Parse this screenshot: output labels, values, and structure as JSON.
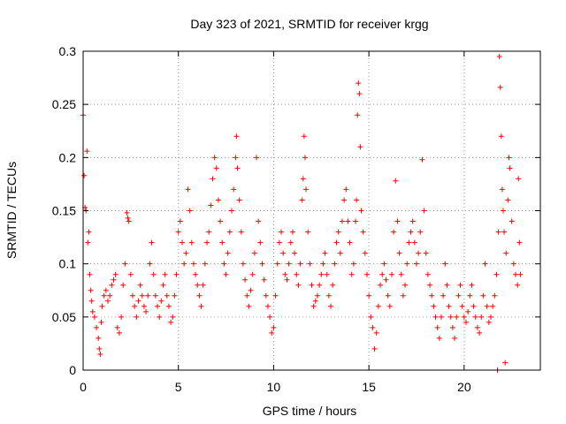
{
  "chart_data": {
    "type": "scatter",
    "title": "Day 323 of 2021, SRMTID for receiver krgg",
    "xlabel": "GPS time / hours",
    "ylabel": "SRMTID / TECUs",
    "xlim": [
      0,
      24
    ],
    "ylim": [
      0,
      0.3
    ],
    "xticks": [
      0,
      5,
      10,
      15,
      20
    ],
    "xtick_labels": [
      "0",
      "5",
      "10",
      "15",
      "20"
    ],
    "yticks": [
      0,
      0.05,
      0.1,
      0.15,
      0.2,
      0.25,
      0.3
    ],
    "ytick_labels": [
      "0",
      "0.05",
      "0.1",
      "0.15",
      "0.2",
      "0.25",
      "0.3"
    ],
    "grid": true,
    "marker": "plus",
    "color": "#ff0000",
    "series": [
      {
        "name": "SRMTID",
        "points": [
          [
            0.0,
            0.24
          ],
          [
            0.05,
            0.183
          ],
          [
            0.1,
            0.153
          ],
          [
            0.15,
            0.15
          ],
          [
            0.2,
            0.206
          ],
          [
            0.25,
            0.12
          ],
          [
            0.3,
            0.13
          ],
          [
            0.35,
            0.09
          ],
          [
            0.4,
            0.075
          ],
          [
            0.45,
            0.065
          ],
          [
            0.5,
            0.055
          ],
          [
            0.6,
            0.05
          ],
          [
            0.7,
            0.04
          ],
          [
            0.8,
            0.03
          ],
          [
            0.85,
            0.02
          ],
          [
            0.9,
            0.015
          ],
          [
            0.95,
            0.045
          ],
          [
            1.0,
            0.06
          ],
          [
            1.1,
            0.07
          ],
          [
            1.2,
            0.075
          ],
          [
            1.3,
            0.065
          ],
          [
            1.4,
            0.07
          ],
          [
            1.5,
            0.08
          ],
          [
            1.6,
            0.085
          ],
          [
            1.7,
            0.09
          ],
          [
            1.8,
            0.04
          ],
          [
            1.9,
            0.035
          ],
          [
            2.0,
            0.05
          ],
          [
            2.1,
            0.08
          ],
          [
            2.2,
            0.1
          ],
          [
            2.3,
            0.148
          ],
          [
            2.35,
            0.143
          ],
          [
            2.4,
            0.14
          ],
          [
            2.5,
            0.09
          ],
          [
            2.6,
            0.07
          ],
          [
            2.7,
            0.06
          ],
          [
            2.8,
            0.05
          ],
          [
            2.9,
            0.065
          ],
          [
            3.0,
            0.08
          ],
          [
            3.1,
            0.07
          ],
          [
            3.2,
            0.06
          ],
          [
            3.3,
            0.055
          ],
          [
            3.4,
            0.07
          ],
          [
            3.5,
            0.1
          ],
          [
            3.6,
            0.12
          ],
          [
            3.7,
            0.09
          ],
          [
            3.8,
            0.07
          ],
          [
            3.9,
            0.06
          ],
          [
            4.0,
            0.05
          ],
          [
            4.1,
            0.065
          ],
          [
            4.2,
            0.08
          ],
          [
            4.3,
            0.09
          ],
          [
            4.4,
            0.07
          ],
          [
            4.5,
            0.06
          ],
          [
            4.6,
            0.045
          ],
          [
            4.7,
            0.05
          ],
          [
            4.8,
            0.07
          ],
          [
            4.9,
            0.09
          ],
          [
            5.0,
            0.13
          ],
          [
            5.1,
            0.14
          ],
          [
            5.2,
            0.12
          ],
          [
            5.3,
            0.1
          ],
          [
            5.4,
            0.11
          ],
          [
            5.5,
            0.17
          ],
          [
            5.6,
            0.15
          ],
          [
            5.7,
            0.12
          ],
          [
            5.8,
            0.1
          ],
          [
            5.9,
            0.09
          ],
          [
            6.0,
            0.08
          ],
          [
            6.1,
            0.07
          ],
          [
            6.2,
            0.06
          ],
          [
            6.3,
            0.08
          ],
          [
            6.4,
            0.1
          ],
          [
            6.5,
            0.12
          ],
          [
            6.6,
            0.13
          ],
          [
            6.7,
            0.155
          ],
          [
            6.8,
            0.18
          ],
          [
            6.9,
            0.2
          ],
          [
            7.0,
            0.19
          ],
          [
            7.1,
            0.16
          ],
          [
            7.2,
            0.14
          ],
          [
            7.3,
            0.12
          ],
          [
            7.4,
            0.1
          ],
          [
            7.5,
            0.09
          ],
          [
            7.6,
            0.11
          ],
          [
            7.7,
            0.13
          ],
          [
            7.8,
            0.15
          ],
          [
            7.9,
            0.17
          ],
          [
            8.0,
            0.2
          ],
          [
            8.05,
            0.22
          ],
          [
            8.1,
            0.19
          ],
          [
            8.2,
            0.16
          ],
          [
            8.3,
            0.13
          ],
          [
            8.4,
            0.1
          ],
          [
            8.5,
            0.085
          ],
          [
            8.6,
            0.07
          ],
          [
            8.7,
            0.06
          ],
          [
            8.8,
            0.075
          ],
          [
            8.9,
            0.09
          ],
          [
            9.0,
            0.11
          ],
          [
            9.1,
            0.2
          ],
          [
            9.2,
            0.14
          ],
          [
            9.3,
            0.12
          ],
          [
            9.4,
            0.1
          ],
          [
            9.5,
            0.085
          ],
          [
            9.6,
            0.07
          ],
          [
            9.7,
            0.06
          ],
          [
            9.8,
            0.05
          ],
          [
            9.9,
            0.035
          ],
          [
            10.0,
            0.04
          ],
          [
            10.1,
            0.07
          ],
          [
            10.2,
            0.1
          ],
          [
            10.3,
            0.12
          ],
          [
            10.4,
            0.13
          ],
          [
            10.5,
            0.11
          ],
          [
            10.6,
            0.09
          ],
          [
            10.7,
            0.085
          ],
          [
            10.8,
            0.1
          ],
          [
            10.9,
            0.12
          ],
          [
            11.0,
            0.13
          ],
          [
            11.1,
            0.11
          ],
          [
            11.2,
            0.09
          ],
          [
            11.3,
            0.08
          ],
          [
            11.4,
            0.1
          ],
          [
            11.5,
            0.16
          ],
          [
            11.55,
            0.18
          ],
          [
            11.6,
            0.22
          ],
          [
            11.65,
            0.2
          ],
          [
            11.7,
            0.17
          ],
          [
            11.8,
            0.13
          ],
          [
            11.9,
            0.1
          ],
          [
            12.0,
            0.08
          ],
          [
            12.1,
            0.06
          ],
          [
            12.2,
            0.065
          ],
          [
            12.3,
            0.07
          ],
          [
            12.4,
            0.08
          ],
          [
            12.5,
            0.09
          ],
          [
            12.6,
            0.1
          ],
          [
            12.7,
            0.11
          ],
          [
            12.8,
            0.09
          ],
          [
            12.9,
            0.07
          ],
          [
            13.0,
            0.06
          ],
          [
            13.1,
            0.08
          ],
          [
            13.2,
            0.1
          ],
          [
            13.3,
            0.12
          ],
          [
            13.4,
            0.13
          ],
          [
            13.5,
            0.11
          ],
          [
            13.6,
            0.14
          ],
          [
            13.7,
            0.16
          ],
          [
            13.8,
            0.17
          ],
          [
            13.9,
            0.14
          ],
          [
            14.0,
            0.12
          ],
          [
            14.1,
            0.09
          ],
          [
            14.2,
            0.1
          ],
          [
            14.3,
            0.14
          ],
          [
            14.35,
            0.16
          ],
          [
            14.4,
            0.24
          ],
          [
            14.45,
            0.27
          ],
          [
            14.5,
            0.26
          ],
          [
            14.55,
            0.21
          ],
          [
            14.6,
            0.15
          ],
          [
            14.7,
            0.13
          ],
          [
            14.8,
            0.11
          ],
          [
            14.9,
            0.09
          ],
          [
            15.0,
            0.07
          ],
          [
            15.1,
            0.05
          ],
          [
            15.2,
            0.04
          ],
          [
            15.3,
            0.02
          ],
          [
            15.4,
            0.035
          ],
          [
            15.5,
            0.06
          ],
          [
            15.6,
            0.08
          ],
          [
            15.7,
            0.09
          ],
          [
            15.8,
            0.1
          ],
          [
            15.9,
            0.085
          ],
          [
            16.0,
            0.07
          ],
          [
            16.1,
            0.06
          ],
          [
            16.2,
            0.09
          ],
          [
            16.3,
            0.13
          ],
          [
            16.4,
            0.178
          ],
          [
            16.5,
            0.14
          ],
          [
            16.6,
            0.11
          ],
          [
            16.7,
            0.09
          ],
          [
            16.8,
            0.07
          ],
          [
            16.9,
            0.08
          ],
          [
            17.0,
            0.1
          ],
          [
            17.1,
            0.12
          ],
          [
            17.2,
            0.13
          ],
          [
            17.3,
            0.14
          ],
          [
            17.4,
            0.12
          ],
          [
            17.5,
            0.1
          ],
          [
            17.6,
            0.11
          ],
          [
            17.7,
            0.13
          ],
          [
            17.8,
            0.198
          ],
          [
            17.9,
            0.15
          ],
          [
            18.0,
            0.11
          ],
          [
            18.1,
            0.09
          ],
          [
            18.2,
            0.08
          ],
          [
            18.3,
            0.07
          ],
          [
            18.4,
            0.06
          ],
          [
            18.5,
            0.05
          ],
          [
            18.6,
            0.04
          ],
          [
            18.7,
            0.03
          ],
          [
            18.8,
            0.05
          ],
          [
            18.9,
            0.07
          ],
          [
            19.0,
            0.1
          ],
          [
            19.1,
            0.08
          ],
          [
            19.2,
            0.06
          ],
          [
            19.3,
            0.05
          ],
          [
            19.4,
            0.04
          ],
          [
            19.5,
            0.03
          ],
          [
            19.6,
            0.05
          ],
          [
            19.7,
            0.07
          ],
          [
            19.8,
            0.08
          ],
          [
            19.9,
            0.06
          ],
          [
            20.0,
            0.05
          ],
          [
            20.1,
            0.045
          ],
          [
            20.2,
            0.055
          ],
          [
            20.3,
            0.07
          ],
          [
            20.4,
            0.08
          ],
          [
            20.5,
            0.06
          ],
          [
            20.6,
            0.05
          ],
          [
            20.7,
            0.04
          ],
          [
            20.8,
            0.035
          ],
          [
            20.9,
            0.05
          ],
          [
            21.0,
            0.07
          ],
          [
            21.1,
            0.1
          ],
          [
            21.2,
            0.06
          ],
          [
            21.3,
            0.045
          ],
          [
            21.4,
            0.05
          ],
          [
            21.5,
            0.06
          ],
          [
            21.6,
            0.07
          ],
          [
            21.7,
            0.09
          ],
          [
            21.75,
            0.0
          ],
          [
            21.8,
            0.13
          ],
          [
            21.85,
            0.295
          ],
          [
            21.9,
            0.266
          ],
          [
            21.95,
            0.22
          ],
          [
            22.0,
            0.17
          ],
          [
            22.05,
            0.15
          ],
          [
            22.1,
            0.13
          ],
          [
            22.15,
            0.007
          ],
          [
            22.2,
            0.11
          ],
          [
            22.3,
            0.16
          ],
          [
            22.35,
            0.2
          ],
          [
            22.4,
            0.19
          ],
          [
            22.5,
            0.14
          ],
          [
            22.6,
            0.1
          ],
          [
            22.7,
            0.09
          ],
          [
            22.8,
            0.08
          ],
          [
            22.85,
            0.18
          ],
          [
            22.9,
            0.12
          ],
          [
            22.95,
            0.09
          ]
        ]
      }
    ]
  }
}
